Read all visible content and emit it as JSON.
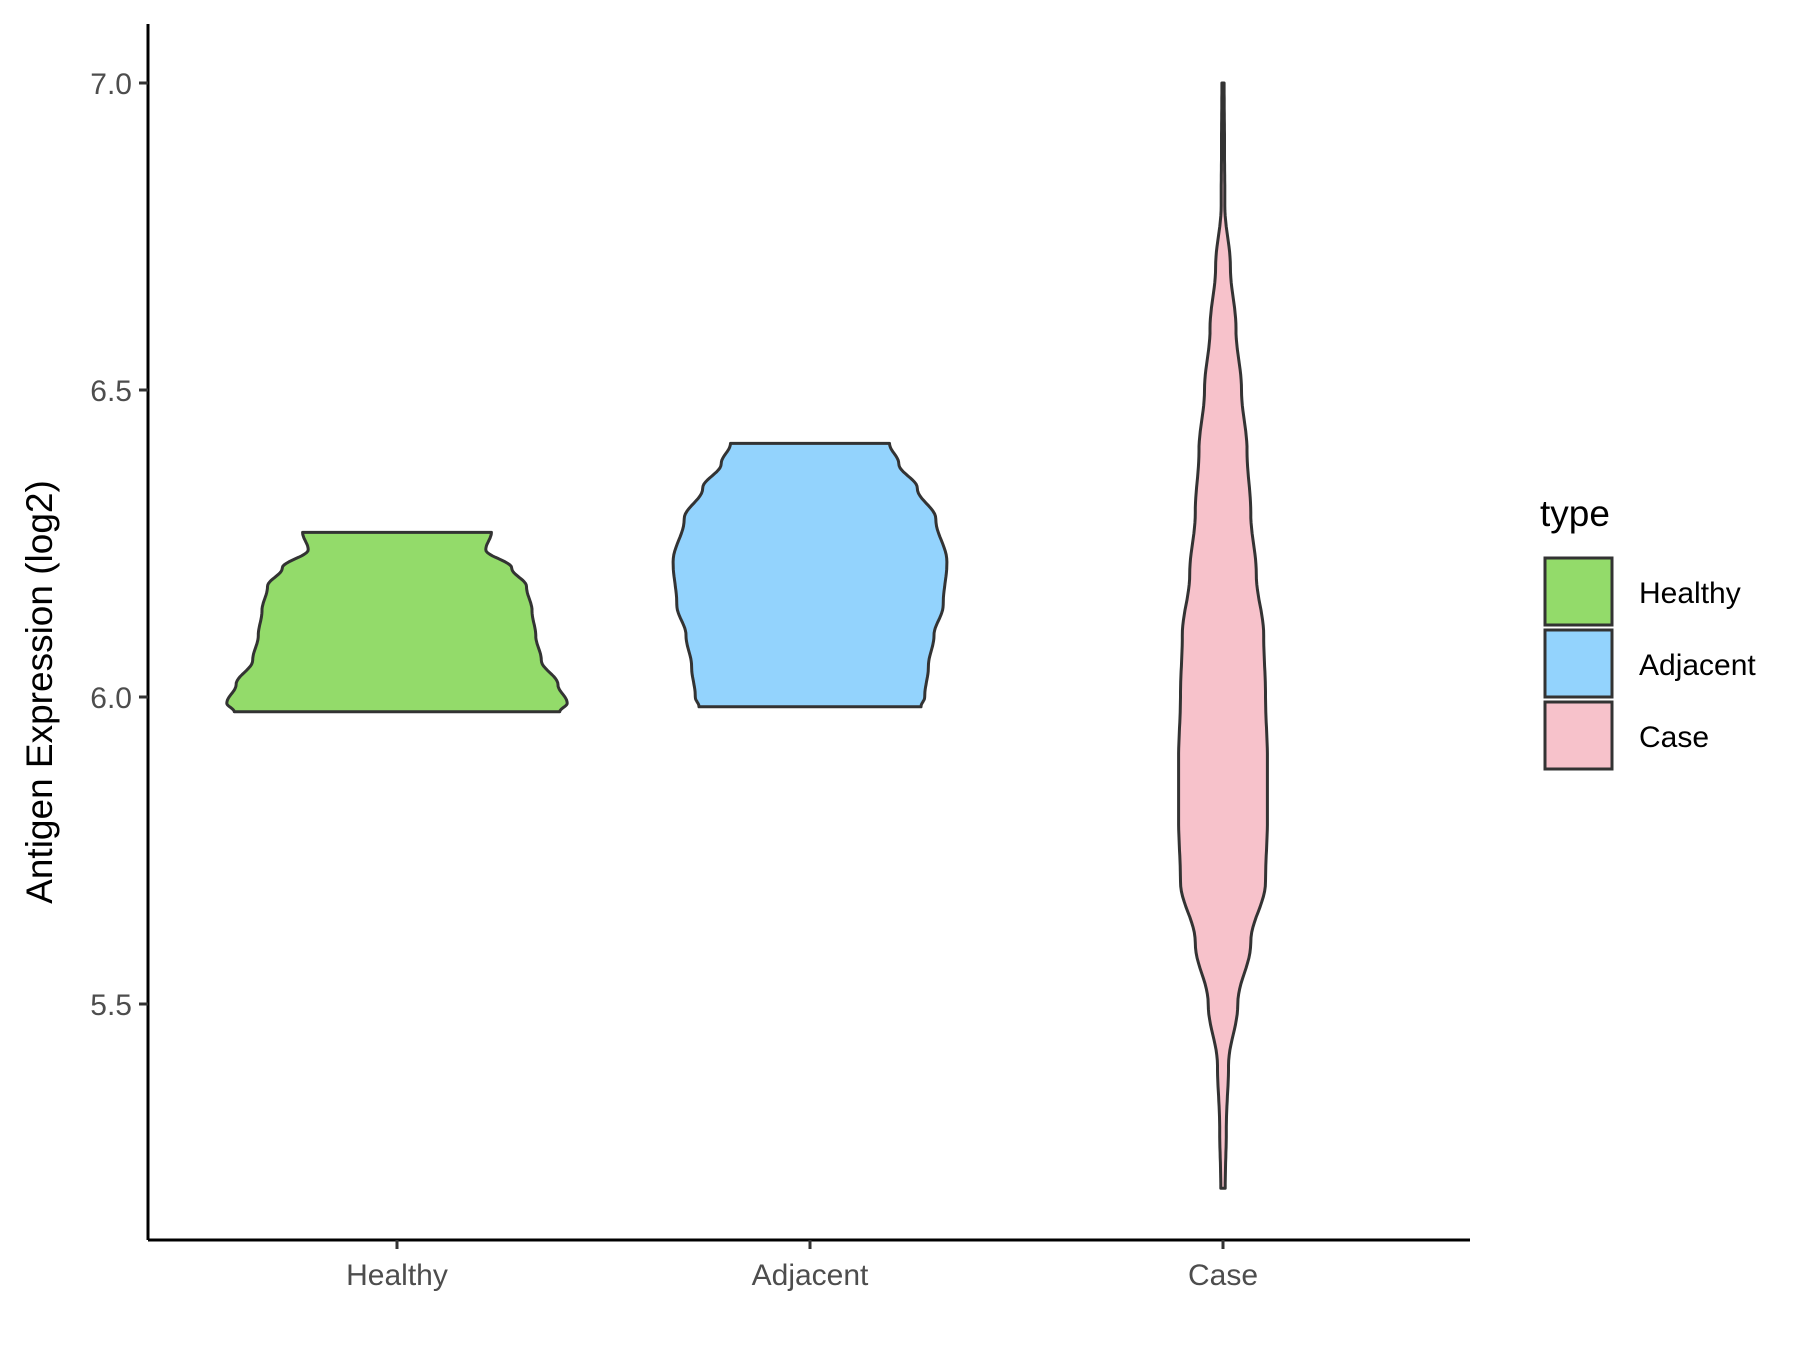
{
  "chart_data": {
    "type": "violin",
    "ylabel": "Antigen Expression (log2)",
    "xlabel": "",
    "categories": [
      "Healthy",
      "Adjacent",
      "Case"
    ],
    "ylim": [
      5.1,
      7.1
    ],
    "yticks": [
      5.5,
      6.0,
      6.5,
      7.0
    ],
    "ytick_labels": [
      "5.5",
      "6.0",
      "6.5",
      "7.0"
    ],
    "grid": false,
    "legend": {
      "title": "type",
      "position": "right",
      "entries": [
        "Healthy",
        "Adjacent",
        "Case"
      ]
    },
    "colors": {
      "Healthy": "#93DB6A",
      "Adjacent": "#93D3FD",
      "Case": "#F7C2CB",
      "outline": "#333333"
    },
    "series": [
      {
        "category": "Healthy",
        "min": 5.976,
        "max": 6.268,
        "density": [
          [
            5.976,
            0.88
          ],
          [
            5.99,
            0.92
          ],
          [
            6.02,
            0.87
          ],
          [
            6.06,
            0.78
          ],
          [
            6.1,
            0.75
          ],
          [
            6.14,
            0.73
          ],
          [
            6.18,
            0.7
          ],
          [
            6.21,
            0.62
          ],
          [
            6.24,
            0.48
          ],
          [
            6.268,
            0.51
          ]
        ]
      },
      {
        "category": "Adjacent",
        "min": 5.984,
        "max": 6.413,
        "density": [
          [
            5.984,
            0.6
          ],
          [
            6.0,
            0.62
          ],
          [
            6.05,
            0.64
          ],
          [
            6.1,
            0.67
          ],
          [
            6.15,
            0.72
          ],
          [
            6.22,
            0.74
          ],
          [
            6.29,
            0.68
          ],
          [
            6.34,
            0.58
          ],
          [
            6.38,
            0.48
          ],
          [
            6.413,
            0.43
          ]
        ]
      },
      {
        "category": "Case",
        "min": 5.2,
        "max": 7.0,
        "density": [
          [
            5.2,
            0.012
          ],
          [
            5.3,
            0.018
          ],
          [
            5.4,
            0.03
          ],
          [
            5.5,
            0.08
          ],
          [
            5.6,
            0.15
          ],
          [
            5.7,
            0.23
          ],
          [
            5.8,
            0.24
          ],
          [
            5.9,
            0.24
          ],
          [
            6.0,
            0.23
          ],
          [
            6.1,
            0.22
          ],
          [
            6.2,
            0.18
          ],
          [
            6.3,
            0.15
          ],
          [
            6.4,
            0.13
          ],
          [
            6.5,
            0.1
          ],
          [
            6.6,
            0.07
          ],
          [
            6.7,
            0.04
          ],
          [
            6.8,
            0.01
          ],
          [
            6.9,
            0.008
          ],
          [
            7.0,
            0.006
          ]
        ]
      }
    ]
  }
}
